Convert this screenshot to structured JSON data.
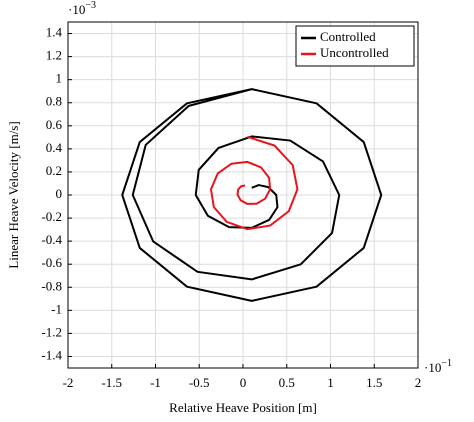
{
  "chart_data": {
    "type": "line",
    "xlabel": "Relative Heave Position [m]",
    "ylabel": "Linear Heave Velocity [m/s]",
    "x_multiplier": {
      "base": "·10",
      "exponent": "−1"
    },
    "y_multiplier": {
      "base": "·10",
      "exponent": "−3"
    },
    "xlim": [
      -2,
      2
    ],
    "ylim": [
      -1.5,
      1.5
    ],
    "xticks": [
      -2,
      -1.5,
      -1,
      -0.5,
      0,
      0.5,
      1,
      1.5,
      2
    ],
    "yticks": [
      -1.4,
      -1.2,
      -1,
      -0.8,
      -0.6,
      -0.4,
      -0.2,
      0,
      0.2,
      0.4,
      0.6,
      0.8,
      1,
      1.2,
      1.4
    ],
    "grid": true,
    "legend": "top-right",
    "series": [
      {
        "name": "Controlled",
        "color": "#000000",
        "x": [
          0.1,
          0.18,
          0.29,
          0.38,
          0.394,
          0.3,
          0.1,
          -0.16,
          -0.402,
          -0.54,
          -0.506,
          -0.28,
          0.1,
          0.54,
          0.914,
          1.1,
          1.018,
          0.66,
          0.1,
          -0.52,
          -1.026,
          -1.26,
          -1.112,
          -0.62,
          0.1,
          0.84,
          1.38,
          1.58,
          1.38,
          0.84,
          0.1,
          -0.64,
          -1.18,
          -1.38,
          -1.18,
          -0.64,
          0.1
        ],
        "values": [
          0.062,
          0.086,
          0.068,
          0,
          -0.105,
          -0.215,
          -0.285,
          -0.279,
          -0.18,
          0,
          0.217,
          0.408,
          0.508,
          0.472,
          0.291,
          0,
          -0.329,
          -0.601,
          -0.732,
          -0.666,
          -0.403,
          0,
          0.434,
          0.773,
          0.918,
          0.795,
          0.459,
          0,
          -0.459,
          -0.795,
          -0.918,
          -0.795,
          -0.459,
          0,
          0.459,
          0.795,
          0.918
        ]
      },
      {
        "name": "Uncontrolled",
        "color": "#e8141b",
        "x": [
          0.05,
          0.362,
          0.568,
          0.622,
          0.523,
          0.31,
          0.05,
          -0.184,
          -0.333,
          -0.366,
          -0.288,
          -0.132,
          0.05,
          0.206,
          0.298,
          0.31,
          0.253,
          0.154,
          0.05,
          -0.028,
          -0.063,
          -0.054,
          -0.018,
          0.024
        ],
        "values": [
          0.505,
          0.428,
          0.259,
          0.05,
          -0.141,
          -0.265,
          -0.296,
          -0.234,
          -0.105,
          0.05,
          0.187,
          0.271,
          0.287,
          0.239,
          0.15,
          0.05,
          -0.032,
          -0.076,
          -0.077,
          -0.045,
          0.004,
          0.05,
          0.077,
          0.082
        ]
      }
    ]
  }
}
